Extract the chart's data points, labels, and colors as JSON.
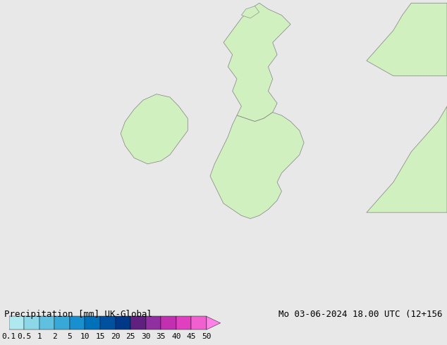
{
  "title_left": "Precipitation [mm] UK-Global",
  "title_right": "Mo 03-06-2024 18.00 UTC (12+156",
  "colorbar_values": [
    0.1,
    0.5,
    1,
    2,
    5,
    10,
    15,
    20,
    25,
    30,
    35,
    40,
    45,
    50
  ],
  "colorbar_colors": [
    "#b0e8f0",
    "#8cd8e8",
    "#60c0e0",
    "#38a8d8",
    "#1890d0",
    "#0070b8",
    "#0050a0",
    "#003888",
    "#602080",
    "#9030a0",
    "#c030b0",
    "#e040c0",
    "#f060d0",
    "#ff80e8"
  ],
  "bg_color": "#e8e8e8",
  "land_color_light": "#d0f0c0",
  "land_color_green": "#90d060",
  "border_color": "#808080",
  "map_bg": "#e8e8e8",
  "text_color": "#000000",
  "font_size_label": 9,
  "font_size_tick": 8
}
